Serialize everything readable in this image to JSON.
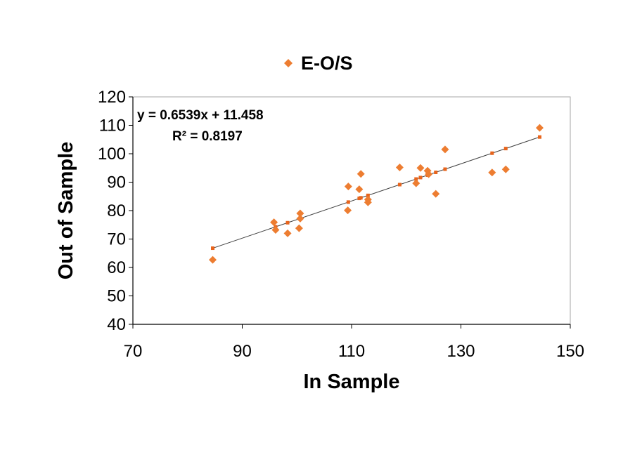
{
  "chart_data": {
    "type": "scatter",
    "title": "",
    "xlabel": "In Sample",
    "ylabel": "Out of Sample",
    "xlim": [
      70,
      150
    ],
    "ylim": [
      40,
      120
    ],
    "x_ticks": [
      70,
      90,
      110,
      130,
      150
    ],
    "y_ticks": [
      40,
      50,
      60,
      70,
      80,
      90,
      100,
      110,
      120
    ],
    "x_tick_labels": [
      "70",
      "90",
      "110",
      "130",
      "150"
    ],
    "y_tick_labels": [
      "40",
      "50",
      "60",
      "70",
      "80",
      "90",
      "100",
      "110",
      "120"
    ],
    "grid": false,
    "legend_position": "top",
    "series": [
      {
        "name": "E-O/S",
        "color": "#ED7D31",
        "marker": "diamond",
        "points": [
          [
            84.6,
            62.7
          ],
          [
            95.8,
            75.9
          ],
          [
            96.1,
            73.2
          ],
          [
            98.3,
            72.0
          ],
          [
            100.4,
            73.8
          ],
          [
            100.6,
            79.0
          ],
          [
            100.6,
            77.2
          ],
          [
            109.3,
            80.1
          ],
          [
            109.4,
            88.5
          ],
          [
            111.4,
            87.5
          ],
          [
            111.7,
            92.9
          ],
          [
            113.0,
            83.9
          ],
          [
            113.0,
            82.9
          ],
          [
            118.8,
            95.2
          ],
          [
            121.8,
            89.6
          ],
          [
            122.6,
            95.0
          ],
          [
            123.9,
            94.0
          ],
          [
            124.1,
            92.8
          ],
          [
            125.4,
            85.9
          ],
          [
            127.1,
            101.5
          ],
          [
            135.7,
            93.4
          ],
          [
            138.2,
            94.5
          ],
          [
            144.4,
            109.1
          ]
        ]
      }
    ],
    "trendline": {
      "color": "#404040",
      "marker_color": "#E8641C",
      "slope": 0.6539,
      "intercept": 11.458,
      "x_points": [
        84.6,
        96.1,
        98.3,
        100.6,
        109.4,
        111.4,
        111.7,
        113.0,
        118.8,
        121.8,
        122.6,
        123.9,
        125.4,
        127.1,
        135.7,
        138.2,
        144.4
      ],
      "equation": "y = 0.6539x + 11.458",
      "r2": "R² = 0.8197"
    }
  }
}
